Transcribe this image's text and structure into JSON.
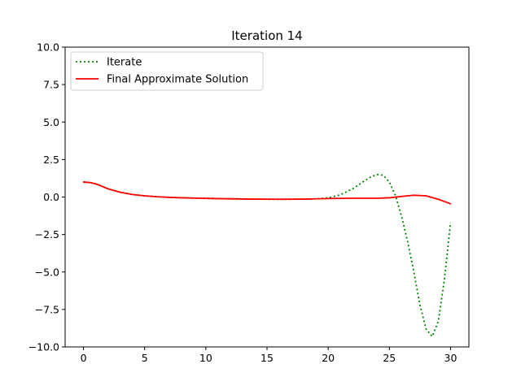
{
  "chart_data": {
    "type": "line",
    "title": "Iteration 14",
    "xlabel": "",
    "ylabel": "",
    "xlim": [
      -1.5,
      31.5
    ],
    "ylim": [
      -10,
      10
    ],
    "xticks": [
      0,
      5,
      10,
      15,
      20,
      25,
      30
    ],
    "yticks": [
      -10,
      -7.5,
      -5,
      -2.5,
      0,
      2.5,
      5,
      7.5,
      10
    ],
    "xtick_labels": [
      "0",
      "5",
      "10",
      "15",
      "20",
      "25",
      "30"
    ],
    "ytick_labels": [
      "−10.0",
      "−7.5",
      "−5.0",
      "−2.5",
      "0.0",
      "2.5",
      "5.0",
      "7.5",
      "10.0"
    ],
    "grid": false,
    "legend_position": "upper-left",
    "series": [
      {
        "name": "Iterate",
        "color": "#008000",
        "style": "dotted",
        "x": [
          0,
          0.5,
          1,
          1.5,
          2,
          3,
          4,
          5,
          6,
          7,
          8,
          10,
          12,
          14,
          16,
          18,
          19,
          20,
          21,
          22,
          23,
          23.5,
          24,
          24.5,
          25,
          25.5,
          26,
          26.5,
          27,
          27.5,
          28,
          28.5,
          29,
          29.5,
          30
        ],
        "y": [
          1.0,
          0.97,
          0.88,
          0.72,
          0.55,
          0.32,
          0.17,
          0.08,
          0.02,
          -0.02,
          -0.05,
          -0.09,
          -0.12,
          -0.14,
          -0.15,
          -0.14,
          -0.12,
          -0.06,
          0.15,
          0.55,
          1.1,
          1.35,
          1.5,
          1.45,
          1.0,
          0.1,
          -1.3,
          -3.0,
          -5.0,
          -7.2,
          -8.8,
          -9.3,
          -8.3,
          -5.5,
          -1.7
        ]
      },
      {
        "name": "Final Approximate Solution",
        "color": "#ff0000",
        "style": "solid",
        "x": [
          0,
          0.5,
          1,
          1.5,
          2,
          3,
          4,
          5,
          6,
          7,
          8,
          10,
          12,
          14,
          16,
          18,
          20,
          22,
          24,
          25,
          26,
          27,
          28,
          29,
          30
        ],
        "y": [
          1.0,
          0.97,
          0.88,
          0.72,
          0.55,
          0.32,
          0.17,
          0.08,
          0.02,
          -0.02,
          -0.05,
          -0.09,
          -0.12,
          -0.14,
          -0.15,
          -0.14,
          -0.1,
          -0.08,
          -0.08,
          -0.05,
          0.04,
          0.12,
          0.08,
          -0.15,
          -0.45
        ]
      }
    ]
  }
}
